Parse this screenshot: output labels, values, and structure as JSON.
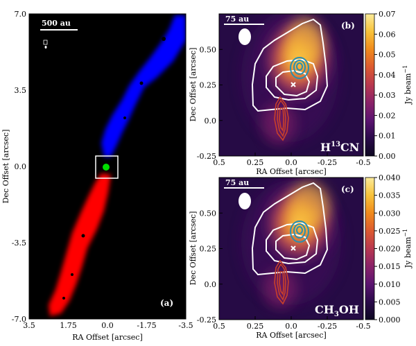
{
  "panel_a": {
    "tag": "(a)",
    "scalebar_label": "500 au",
    "xlabel": "RA Offset [arcsec]",
    "ylabel": "Dec Offset [arcsec]",
    "xticks": [
      "3.5",
      "1.75",
      "0.0",
      "-1.75",
      "-3.5"
    ],
    "yticks": [
      "7.0",
      "3.5",
      "0.0",
      "-3.5",
      "-7.0"
    ],
    "colors": {
      "blue_lobe": "#0000ff",
      "red_lobe": "#ff0000",
      "core": "#00dd00",
      "box": "#ffffff"
    }
  },
  "panel_b": {
    "tag": "(b)",
    "molecule": {
      "main": "H",
      "sup": "13",
      "rest": "CN"
    },
    "scalebar_label": "75 au",
    "xlabel": "RA Offset [arcsec]",
    "ylabel": "Dec Offset [arcsec]",
    "xticks": [
      "0.5",
      "0.25",
      "0.0",
      "-0.25",
      "-0.5"
    ],
    "yticks": [
      "0.50",
      "0.25",
      "0.0",
      "-0.25"
    ],
    "colorbar_label": "Jy beam",
    "colorbar_unit_sup": "−1",
    "colorbar_ticks": [
      "0.07",
      "0.06",
      "0.05",
      "0.04",
      "0.03",
      "0.02",
      "0.01",
      "0.00"
    ]
  },
  "panel_c": {
    "tag": "(c)",
    "molecule": {
      "main": "CH",
      "sub": "3",
      "rest": "OH"
    },
    "scalebar_label": "75 au",
    "xlabel": "RA Offset [arcsec]",
    "ylabel": "Dec Offset [arcsec]",
    "xticks": [
      "0.5",
      "0.25",
      "0.0",
      "-0.25",
      "-0.5"
    ],
    "yticks": [
      "0.50",
      "0.25",
      "0.0",
      "-0.25"
    ],
    "colorbar_label": "Jy beam",
    "colorbar_unit_sup": "−1",
    "colorbar_ticks": [
      "0.040",
      "0.035",
      "0.030",
      "0.025",
      "0.020",
      "0.015",
      "0.010",
      "0.005",
      "0.000"
    ]
  },
  "colormap": [
    "#0d0721",
    "#2a0a4a",
    "#5b1470",
    "#8a2268",
    "#b8384f",
    "#dc5a30",
    "#f08a1c",
    "#f8c23a",
    "#fbeb9a"
  ],
  "contour_colors": {
    "dust": "#ffffff",
    "blue": "#2a8fb0",
    "red": "#c8402a"
  }
}
